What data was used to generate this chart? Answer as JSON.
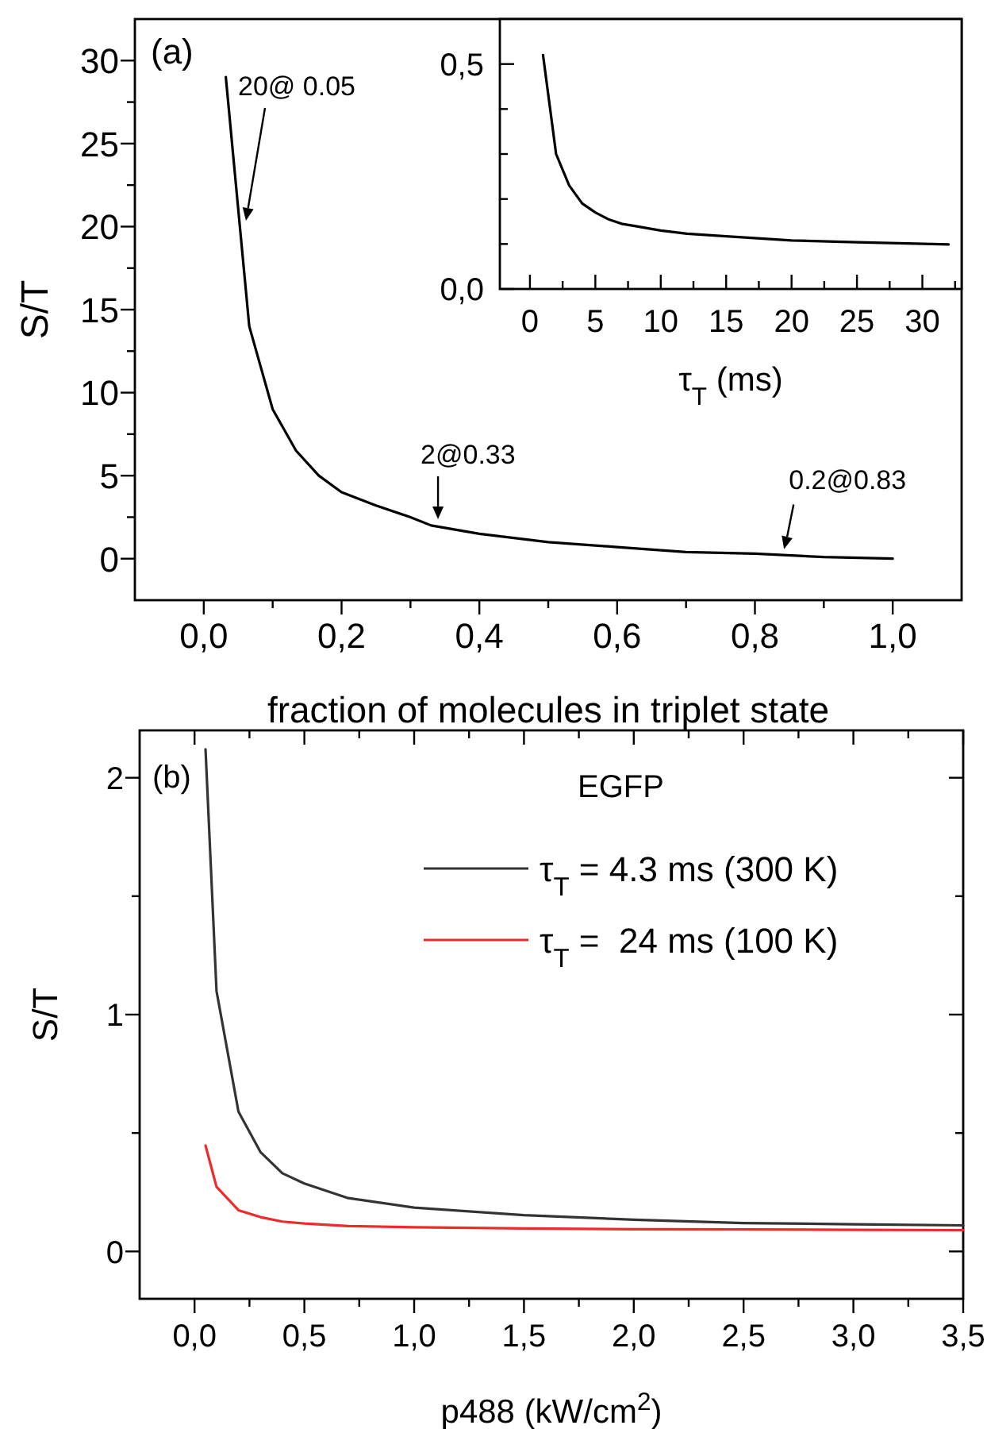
{
  "chart_data": [
    {
      "type": "line",
      "xlabel": "fraction of molecules in triplet state",
      "ylabel": "S/T",
      "xlim": [
        -0.1,
        1.1
      ],
      "ylim": [
        -2.5,
        32.5
      ],
      "xticks": [
        {
          "value": 0,
          "label": "0,0"
        },
        {
          "value": 0.1,
          "label": null
        },
        {
          "value": 0.2,
          "label": "0,2"
        },
        {
          "value": 0.3,
          "label": null
        },
        {
          "value": 0.4,
          "label": "0,4"
        },
        {
          "value": 0.5,
          "label": null
        },
        {
          "value": 0.6,
          "label": "0,6"
        },
        {
          "value": 0.7,
          "label": null
        },
        {
          "value": 0.8,
          "label": "0,8"
        },
        {
          "value": 0.9,
          "label": null
        },
        {
          "value": 1,
          "label": "1,0"
        }
      ],
      "yticks": [
        0,
        {
          "value": 2.5,
          "label": null
        },
        5,
        {
          "value": 7.5,
          "label": null
        },
        10,
        {
          "value": 12.5,
          "label": null
        },
        15,
        {
          "value": 17.5,
          "label": null
        },
        20,
        {
          "value": 22.5,
          "label": null
        },
        25,
        {
          "value": 27.5,
          "label": null
        },
        30
      ],
      "series": [
        {
          "color": "#000000",
          "x": [
            0.032,
            0.066,
            0.1,
            0.134,
            0.167,
            0.2,
            0.25,
            0.3,
            0.33,
            0.4,
            0.5,
            0.6,
            0.7,
            0.8,
            0.9,
            1.0
          ],
          "values": [
            29.0,
            14.0,
            9.0,
            6.5,
            5.0,
            4.0,
            3.2,
            2.5,
            2.0,
            1.5,
            1.0,
            0.7,
            0.4,
            0.3,
            0.1,
            0.0
          ]
        }
      ],
      "annotations": [
        "(a)",
        "20@ 0.05",
        {
          "text": "2@0.33",
          "x": 0.34,
          "y": 2
        },
        {
          "text": "0.2@0.83",
          "x": 0.84,
          "y": 0.2
        }
      ]
    },
    {
      "type": "line",
      "xlabel": "τ$_{T}$ (ms)",
      "xlim": [
        -2.3,
        33
      ],
      "ylim": [
        0,
        0.6
      ],
      "xticks": [
        0,
        {
          "value": 2.5,
          "label": null
        },
        5,
        {
          "value": 7.5,
          "label": null
        },
        10,
        {
          "value": 12.5,
          "label": null
        },
        15,
        {
          "value": 17.5,
          "label": null
        },
        20,
        {
          "value": 22.5,
          "label": null
        },
        25,
        {
          "value": 27.5,
          "label": null
        },
        30,
        {
          "value": 32.5,
          "label": null
        }
      ],
      "yticks": [
        {
          "value": 0,
          "label": "0,0"
        },
        {
          "value": 0.1,
          "label": null
        },
        {
          "value": 0.2,
          "label": null
        },
        {
          "value": 0.3,
          "label": null
        },
        {
          "value": 0.4,
          "label": null
        },
        {
          "value": 0.5,
          "label": "0,5"
        }
      ],
      "series": [
        {
          "color": "#000000",
          "x": [
            1,
            2,
            3,
            4,
            5,
            6,
            7,
            8,
            10,
            12,
            15,
            20,
            25,
            32
          ],
          "values": [
            0.52,
            0.3,
            0.23,
            0.19,
            0.17,
            0.155,
            0.145,
            0.14,
            0.13,
            0.123,
            0.117,
            0.108,
            0.104,
            0.099
          ]
        }
      ]
    },
    {
      "type": "line",
      "xlabel": "p488 (kW/cm$^{2}$)",
      "ylabel": "S/T",
      "xlim": [
        -0.25,
        3.5
      ],
      "ylim": [
        -0.2,
        2.2
      ],
      "xticks": [
        {
          "value": 0,
          "label": "0,0"
        },
        {
          "value": 0.25,
          "label": null
        },
        {
          "value": 0.5,
          "label": "0,5"
        },
        {
          "value": 0.75,
          "label": null
        },
        {
          "value": 1,
          "label": "1,0"
        },
        {
          "value": 1.25,
          "label": null
        },
        {
          "value": 1.5,
          "label": "1,5"
        },
        {
          "value": 1.75,
          "label": null
        },
        {
          "value": 2,
          "label": "2,0"
        },
        {
          "value": 2.25,
          "label": null
        },
        {
          "value": 2.5,
          "label": "2,5"
        },
        {
          "value": 2.75,
          "label": null
        },
        {
          "value": 3,
          "label": "3,0"
        },
        {
          "value": 3.25,
          "label": null
        },
        {
          "value": 3.5,
          "label": "3,5"
        }
      ],
      "yticks": [
        0,
        {
          "value": 0.5,
          "label": null
        },
        1,
        {
          "value": 1.5,
          "label": null
        },
        2
      ],
      "legend": "top right",
      "legend_title": "EGFP",
      "series": [
        {
          "name": "τ$_{T}$ = 4.3 ms (300 K)",
          "color": "#333333",
          "x": [
            0.05,
            0.1,
            0.2,
            0.3,
            0.4,
            0.5,
            0.7,
            1.0,
            1.5,
            2.0,
            2.5,
            3.0,
            3.5
          ],
          "values": [
            2.12,
            1.1,
            0.59,
            0.42,
            0.33,
            0.287,
            0.225,
            0.185,
            0.153,
            0.134,
            0.12,
            0.115,
            0.11
          ]
        },
        {
          "name": "τ$_{T}$ =  24 ms (100 K)",
          "color": "#ee2a2a",
          "x": [
            0.05,
            0.1,
            0.2,
            0.3,
            0.4,
            0.5,
            0.7,
            1.0,
            1.5,
            2.0,
            2.5,
            3.0,
            3.5
          ],
          "values": [
            0.447,
            0.273,
            0.174,
            0.145,
            0.126,
            0.118,
            0.107,
            0.102,
            0.097,
            0.094,
            0.093,
            0.091,
            0.09
          ]
        }
      ],
      "annotations": [
        "(b)"
      ]
    }
  ]
}
